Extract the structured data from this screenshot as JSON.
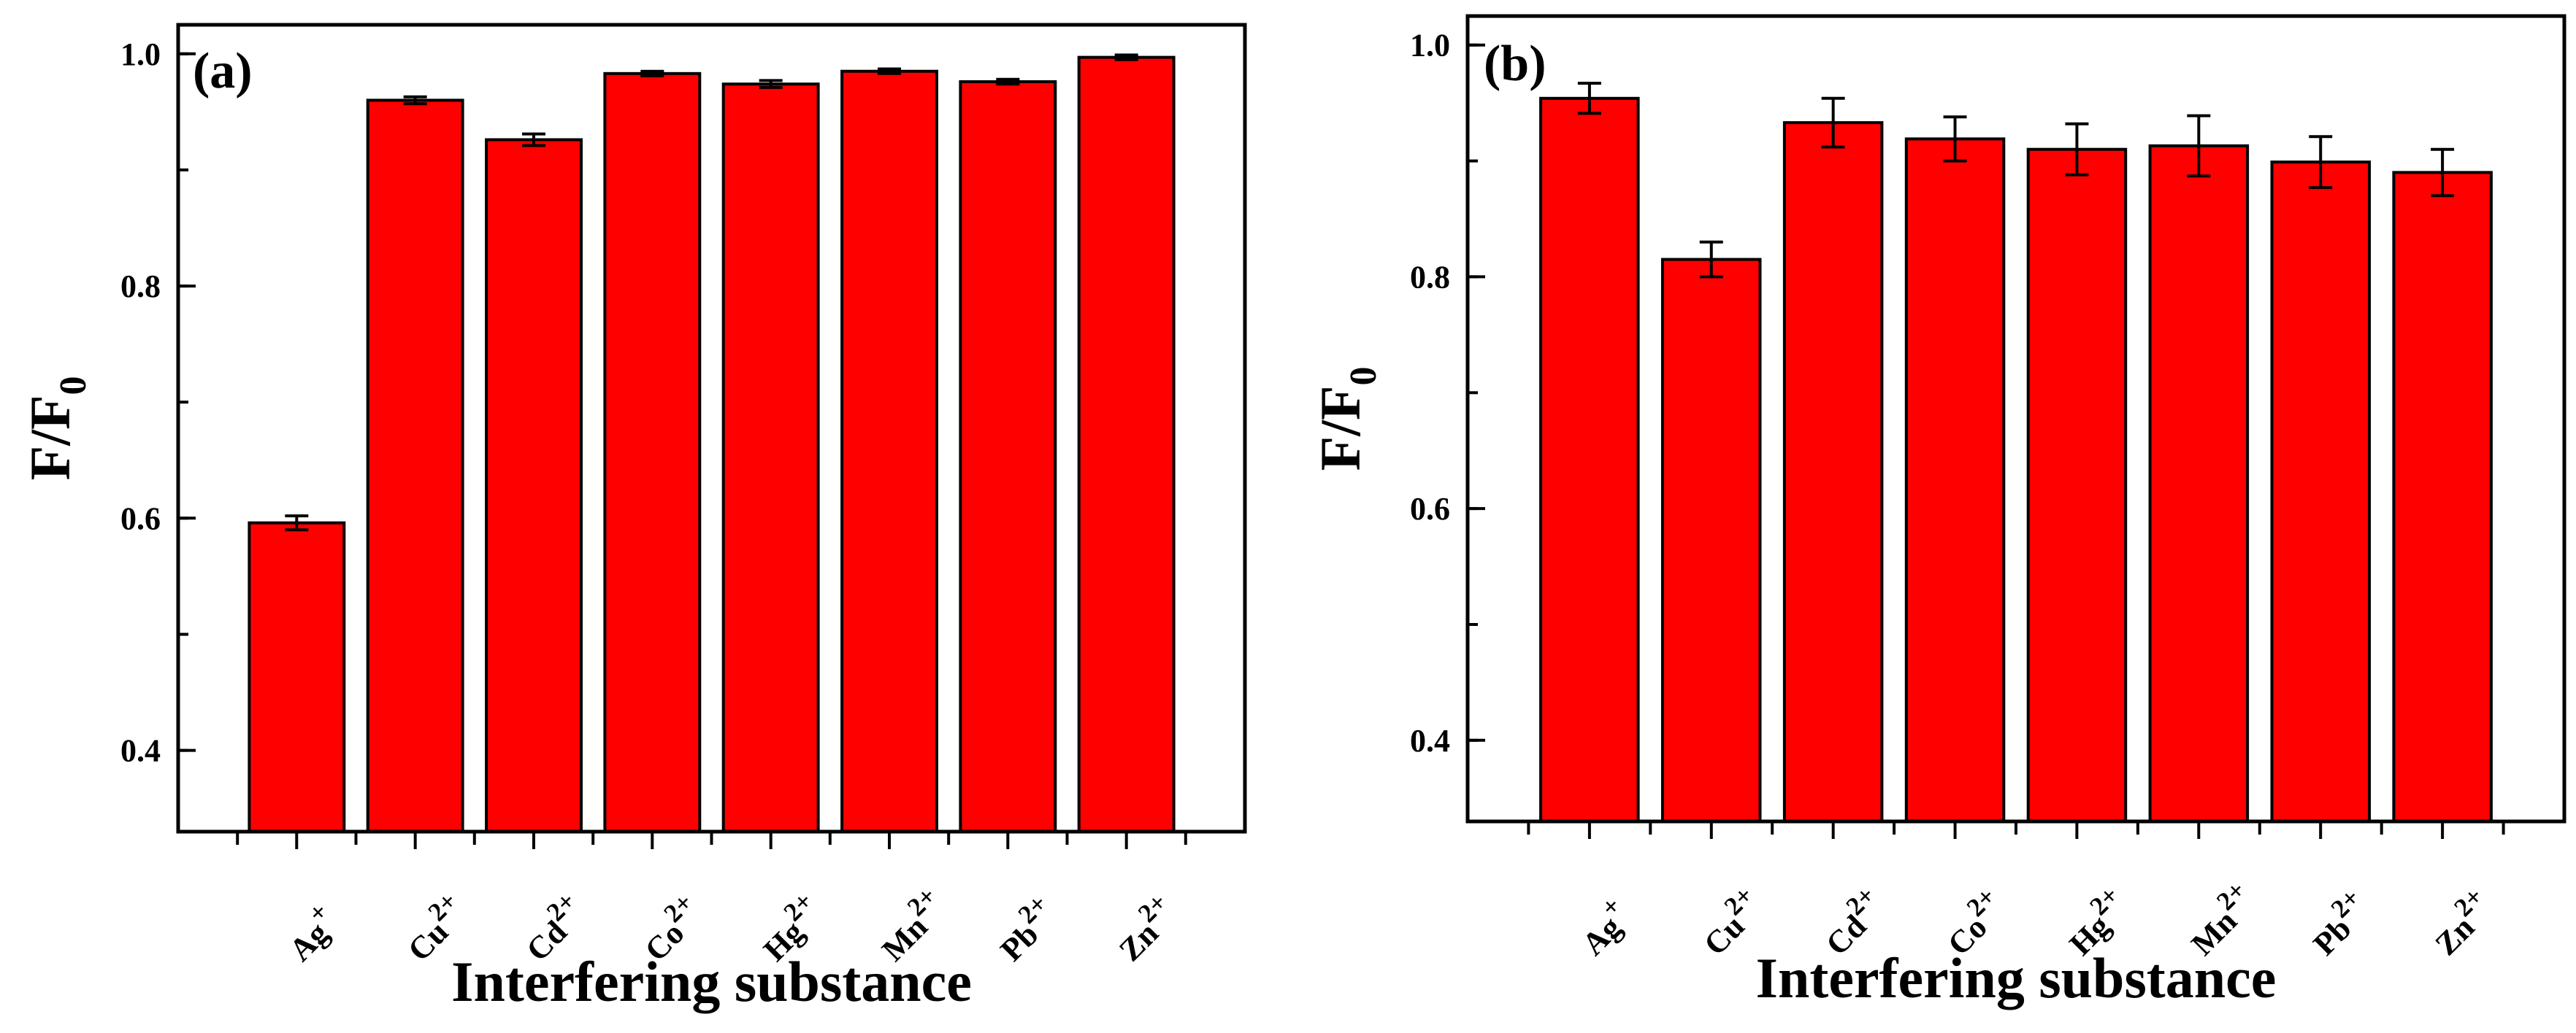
{
  "colors": {
    "bar": "#ff0000",
    "bar_edge": "#000000",
    "axis": "#000000",
    "background": "#ffffff"
  },
  "chart_data": [
    {
      "type": "bar",
      "panel_label": "(a)",
      "xlabel": "Interfering substance",
      "ylabel_main": "F/F",
      "ylabel_sub": "0",
      "ylim": [
        0.33,
        1.025
      ],
      "yticks": [
        "0.4",
        "0.6",
        "0.8",
        "1.0"
      ],
      "categories": [
        {
          "base": "Ag",
          "charge": "+"
        },
        {
          "base": "Cu",
          "charge": "2+"
        },
        {
          "base": "Cd",
          "charge": "2+"
        },
        {
          "base": "Co",
          "charge": "2+"
        },
        {
          "base": "Hg",
          "charge": "2+"
        },
        {
          "base": "Mn",
          "charge": "2+"
        },
        {
          "base": "Pb",
          "charge": "2+"
        },
        {
          "base": "Zn",
          "charge": "2+"
        }
      ],
      "values": [
        0.596,
        0.96,
        0.926,
        0.983,
        0.974,
        0.985,
        0.976,
        0.997
      ],
      "errors": [
        0.006,
        0.003,
        0.005,
        0.002,
        0.003,
        0.002,
        0.002,
        0.002
      ],
      "grid": false
    },
    {
      "type": "bar",
      "panel_label": "(b)",
      "xlabel": "Interfering substance",
      "ylabel_main": "F/F",
      "ylabel_sub": "0",
      "ylim": [
        0.33,
        1.025
      ],
      "yticks": [
        "0.4",
        "0.6",
        "0.8",
        "1.0"
      ],
      "categories": [
        {
          "base": "Ag",
          "charge": "+"
        },
        {
          "base": "Cu",
          "charge": "2+"
        },
        {
          "base": "Cd",
          "charge": "2+"
        },
        {
          "base": "Co",
          "charge": "2+"
        },
        {
          "base": "Hg",
          "charge": "2+"
        },
        {
          "base": "Mn",
          "charge": "2+"
        },
        {
          "base": "Pb",
          "charge": "2+"
        },
        {
          "base": "Zn",
          "charge": "2+"
        }
      ],
      "values": [
        0.954,
        0.815,
        0.933,
        0.919,
        0.91,
        0.913,
        0.899,
        0.89
      ],
      "errors": [
        0.013,
        0.015,
        0.021,
        0.019,
        0.022,
        0.026,
        0.022,
        0.02
      ],
      "grid": false
    }
  ]
}
